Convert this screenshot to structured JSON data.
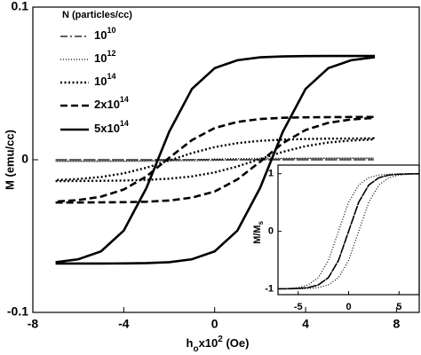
{
  "chart_data": [
    {
      "type": "line",
      "ylabel": "M (emu/cc)",
      "xlabel": [
        "h",
        "o",
        "x10",
        "2",
        " (Oe)"
      ],
      "legend_title": "N (particles/cc)",
      "xlim": [
        -8,
        9
      ],
      "ylim": [
        -0.1,
        0.1
      ],
      "xticks": [
        -8,
        -4,
        0,
        4,
        8
      ],
      "yticks": [
        -0.1,
        0,
        0.1
      ],
      "x": [
        -7,
        -6,
        -5,
        -4,
        -3,
        -2,
        -1,
        0,
        1,
        2,
        3,
        4,
        5,
        6,
        7,
        7,
        6,
        5,
        4,
        3,
        2,
        1,
        0,
        -1,
        -2,
        -3,
        -4,
        -5,
        -6,
        -7
      ],
      "series": [
        {
          "name": [
            "10",
            "10"
          ],
          "color": "#000000",
          "dash": "8,3,2,3",
          "width": 1.2,
          "values": [
            0,
            0,
            0,
            0,
            0,
            0,
            0,
            0,
            0,
            0,
            0,
            0,
            0,
            0,
            0,
            0,
            0,
            0,
            0,
            0,
            0,
            0,
            0,
            0,
            0,
            0,
            0,
            0,
            0,
            0
          ]
        },
        {
          "name": [
            "10",
            "12"
          ],
          "color": "#000000",
          "dash": "1,2",
          "width": 1.2,
          "values": [
            -0.001,
            -0.001,
            -0.001,
            -0.001,
            -0.001,
            -0.0009,
            -0.0008,
            -0.0005,
            -0.0001,
            0.0003,
            0.0007,
            0.0009,
            0.001,
            0.001,
            0.001,
            0.001,
            0.001,
            0.001,
            0.001,
            0.001,
            0.0009,
            0.0008,
            0.0005,
            0.0001,
            -0.0003,
            -0.0007,
            -0.0009,
            -0.001,
            -0.001,
            -0.001
          ]
        },
        {
          "name": [
            "10",
            "14"
          ],
          "color": "#000000",
          "dash": "2,2.5",
          "width": 2.4,
          "values": [
            -0.014,
            -0.0139,
            -0.0138,
            -0.0136,
            -0.0132,
            -0.0124,
            -0.0109,
            -0.0083,
            -0.0044,
            0.0005,
            0.0052,
            0.0089,
            0.0113,
            0.0126,
            0.0133,
            0.014,
            0.0139,
            0.0138,
            0.0136,
            0.0132,
            0.0124,
            0.0109,
            0.0083,
            0.0044,
            -0.0005,
            -0.0052,
            -0.0089,
            -0.0113,
            -0.0126,
            -0.0133
          ]
        },
        {
          "name": [
            "2x10",
            "14"
          ],
          "color": "#000000",
          "dash": "8,4",
          "width": 2.6,
          "values": [
            -0.028,
            -0.028,
            -0.0279,
            -0.0278,
            -0.0275,
            -0.0267,
            -0.0248,
            -0.0208,
            -0.0129,
            -0.0013,
            0.0109,
            0.0195,
            0.0242,
            0.0264,
            0.0274,
            0.028,
            0.028,
            0.0279,
            0.0278,
            0.0275,
            0.0267,
            0.0248,
            0.0208,
            0.0129,
            0.0013,
            -0.0109,
            -0.0195,
            -0.0242,
            -0.0264,
            -0.0274
          ]
        },
        {
          "name": [
            "5x10",
            "14"
          ],
          "color": "#000000",
          "dash": "none",
          "width": 2.6,
          "values": [
            -0.068,
            -0.068,
            -0.068,
            -0.0679,
            -0.0677,
            -0.0671,
            -0.0652,
            -0.06,
            -0.0464,
            -0.0184,
            0.0184,
            0.0464,
            0.06,
            0.0652,
            0.0671,
            0.068,
            0.068,
            0.068,
            0.0679,
            0.0677,
            0.0671,
            0.0652,
            0.06,
            0.0464,
            0.0184,
            -0.0184,
            -0.0464,
            -0.06,
            -0.0652,
            -0.0671
          ]
        }
      ]
    },
    {
      "type": "line",
      "ylabel": [
        "M/M",
        "s"
      ],
      "xlim": [
        -7,
        7
      ],
      "ylim": [
        -1.1,
        1.15
      ],
      "xticks": [
        -5,
        0,
        5
      ],
      "yticks": [
        -1,
        0,
        1
      ],
      "x": [
        -7,
        -6,
        -5,
        -4,
        -3,
        -2,
        -1,
        0,
        1,
        2,
        3,
        4,
        5,
        6,
        7,
        7,
        6,
        5,
        4,
        3,
        2,
        1,
        0,
        -1,
        -2,
        -3,
        -4,
        -5,
        -6,
        -7
      ],
      "series": [
        {
          "color": "#000000",
          "dash": "6,2,1.5,2",
          "width": 1.6,
          "values": [
            -0.9992,
            -0.9975,
            -0.992,
            -0.977,
            -0.931,
            -0.804,
            -0.505,
            0,
            0.505,
            0.804,
            0.931,
            0.977,
            0.992,
            0.9975,
            0.9992,
            0.9992,
            0.9975,
            0.992,
            0.977,
            0.931,
            0.804,
            0.505,
            0,
            -0.505,
            -0.804,
            -0.931,
            -0.977,
            -0.992,
            -0.9975,
            -0.9992
          ]
        },
        {
          "color": "#000000",
          "dash": "1,2",
          "width": 1.2,
          "values": [
            -0.9997,
            -0.9992,
            -0.9975,
            -0.992,
            -0.977,
            -0.931,
            -0.804,
            -0.505,
            0,
            0.505,
            0.804,
            0.931,
            0.977,
            0.992,
            0.9975,
            0.9997,
            0.9992,
            0.9975,
            0.992,
            0.977,
            0.931,
            0.804,
            0.505,
            0,
            -0.505,
            -0.804,
            -0.931,
            -0.977,
            -0.992,
            -0.9975
          ]
        }
      ]
    }
  ]
}
